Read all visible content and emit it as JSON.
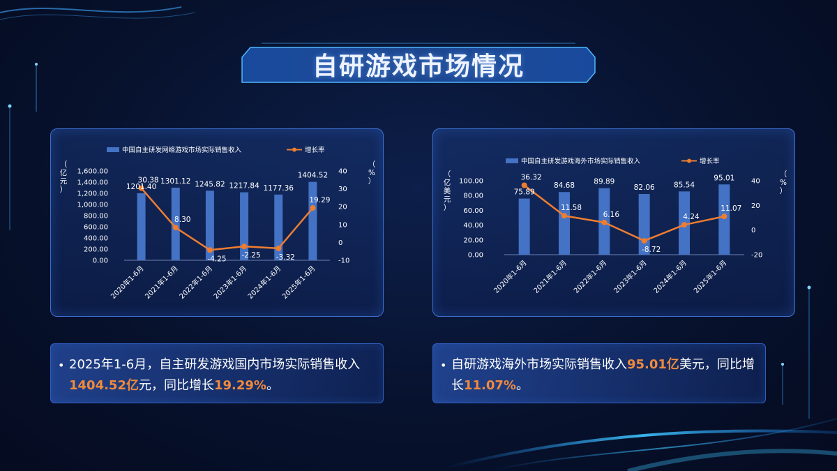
{
  "page": {
    "title": "自研游戏市场情况"
  },
  "colors": {
    "bar": "#4472c4",
    "line": "#ed7d31",
    "text": "#ffffff",
    "highlight": "#f08a3c",
    "panel_border": "#3d6fd0"
  },
  "chart_data": [
    {
      "type": "bar",
      "title": "",
      "legend": {
        "bar_label": "中国自主研发网络游戏市场实际销售收入",
        "line_label": "增长率",
        "placement": "top"
      },
      "left_axis_label": "（亿元）",
      "right_axis_label": "（%）",
      "categories": [
        "2020年1-6月",
        "2021年1-6月",
        "2022年1-6月",
        "2023年1-6月",
        "2024年1-6月",
        "2025年1-6月"
      ],
      "series": [
        {
          "name": "中国自主研发网络游戏市场实际销售收入",
          "kind": "bar",
          "axis": "left",
          "values": [
            1201.4,
            1301.12,
            1245.82,
            1217.84,
            1177.36,
            1404.52
          ],
          "labels": [
            "1201.40",
            "1301.12",
            "1245.82",
            "1217.84",
            "1177.36",
            "1404.52"
          ]
        },
        {
          "name": "增长率",
          "kind": "line",
          "axis": "right",
          "values": [
            30.38,
            8.3,
            -4.25,
            -2.25,
            -3.32,
            19.29
          ],
          "labels": [
            "30.38",
            "8.30",
            "-4.25",
            "-2.25",
            "-3.32",
            "19.29"
          ]
        }
      ],
      "ylim_left": [
        0,
        1600
      ],
      "yticks_left": [
        "0.00",
        "200.00",
        "400.00",
        "600.00",
        "800.00",
        "1,000.00",
        "1,200.00",
        "1,400.00",
        "1,600.00"
      ],
      "ylim_right": [
        -10,
        40
      ],
      "yticks_right": [
        "-10",
        "0",
        "10",
        "20",
        "30",
        "40"
      ],
      "grid": false
    },
    {
      "type": "bar",
      "title": "",
      "legend": {
        "bar_label": "中国自主研发游戏海外市场实际销售收入",
        "line_label": "增长率",
        "placement": "top"
      },
      "left_axis_label": "（亿美元）",
      "right_axis_label": "（%）",
      "categories": [
        "2020年1-6月",
        "2021年1-6月",
        "2022年1-6月",
        "2023年1-6月",
        "2024年1-6月",
        "2025年1-6月"
      ],
      "series": [
        {
          "name": "中国自主研发游戏海外市场实际销售收入",
          "kind": "bar",
          "axis": "left",
          "values": [
            75.89,
            84.68,
            89.89,
            82.06,
            85.54,
            95.01
          ],
          "labels": [
            "75.89",
            "84.68",
            "89.89",
            "82.06",
            "85.54",
            "95.01"
          ]
        },
        {
          "name": "增长率",
          "kind": "line",
          "axis": "right",
          "values": [
            36.32,
            11.58,
            6.16,
            -8.72,
            4.24,
            11.07
          ],
          "labels": [
            "36.32",
            "11.58",
            "6.16",
            "-8.72",
            "4.24",
            "11.07"
          ]
        }
      ],
      "ylim_left": [
        0,
        100
      ],
      "yticks_left": [
        "0.00",
        "20.00",
        "40.00",
        "60.00",
        "80.00",
        "100.00"
      ],
      "ylim_right": [
        -20,
        40
      ],
      "yticks_right": [
        "-20",
        "0",
        "20",
        "40"
      ],
      "grid": false
    }
  ],
  "notes": [
    {
      "bullet": "•",
      "p1": "2025年1-6月，自主研发游戏国内市场实际销售收入",
      "h1": "1404.52亿",
      "p2": "元，同比增长",
      "h2": "19.29%",
      "p3": "。"
    },
    {
      "bullet": "•",
      "p1": "自研游戏海外市场实际销售收入",
      "h1": "95.01亿",
      "p2": "美元，同比增长",
      "h2": "11.07%",
      "p3": "。"
    }
  ]
}
